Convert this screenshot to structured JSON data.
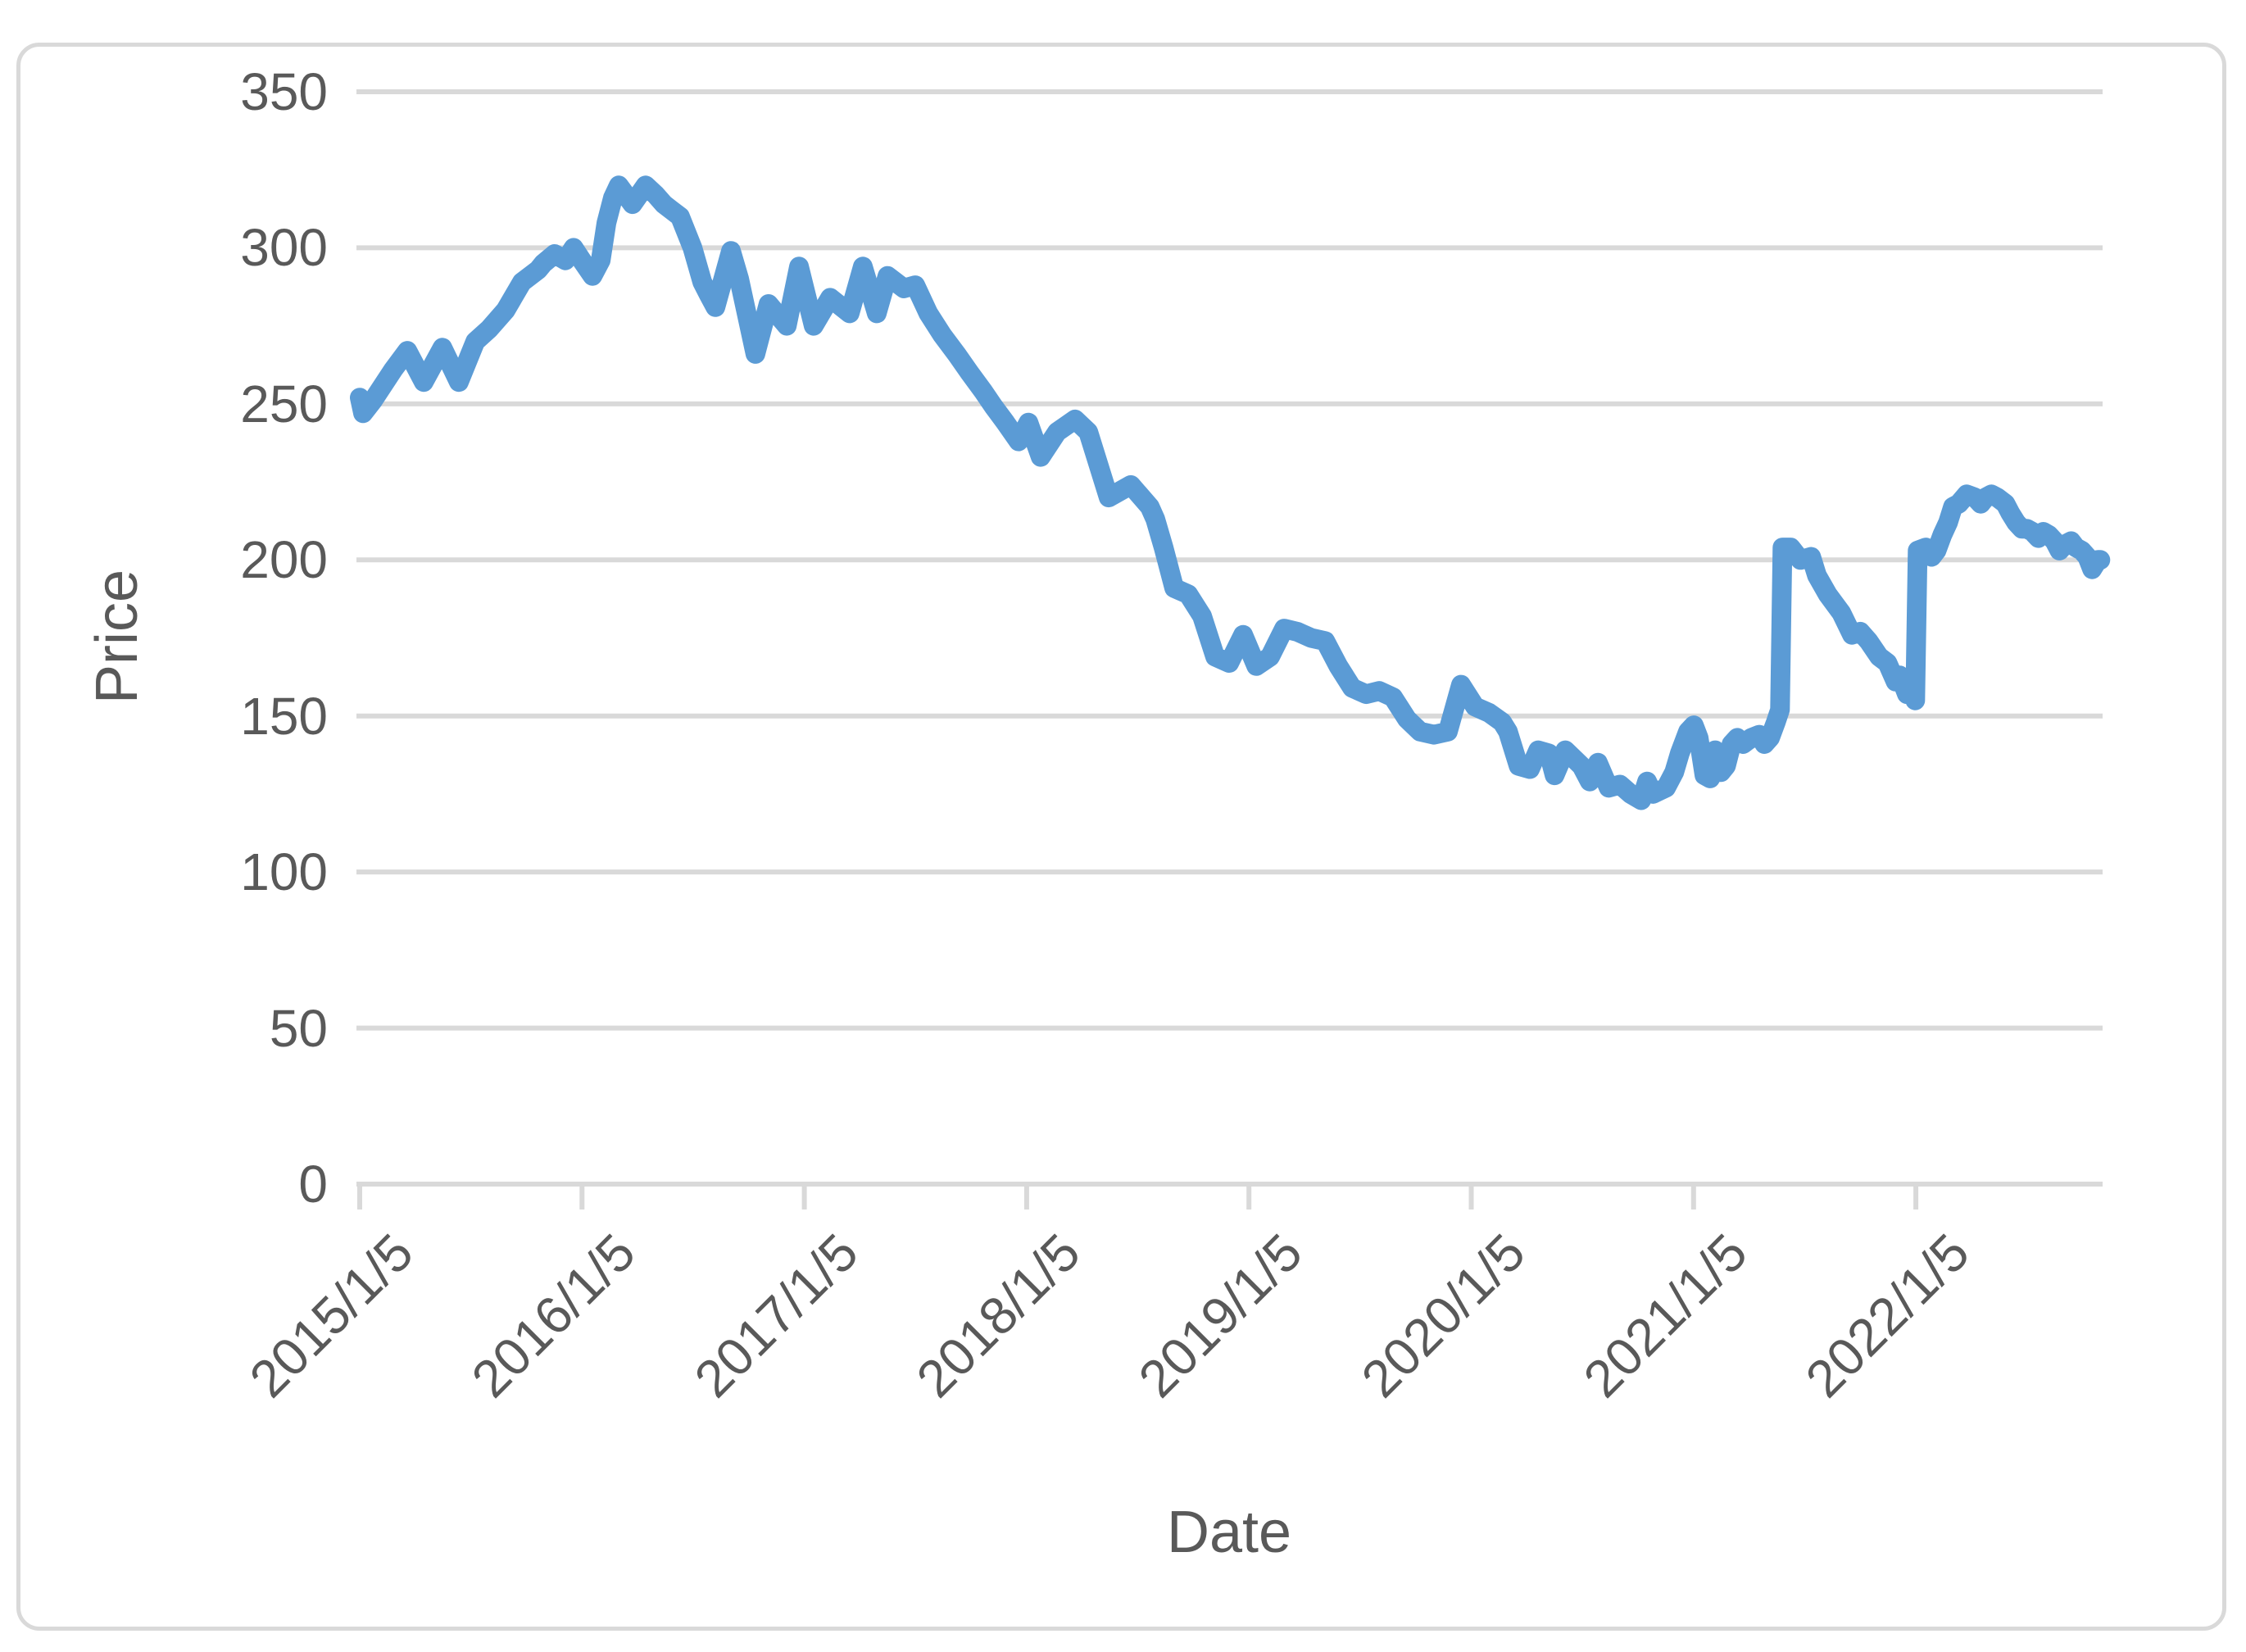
{
  "figure": {
    "kind": "excel-style line chart",
    "background": "#FFFFFF",
    "border_color": "#D9D9D9"
  },
  "chart_data": {
    "type": "line",
    "title": "",
    "xlabel": "Date",
    "ylabel": "Price",
    "legend": "none",
    "grid": "horizontal",
    "gridline_color": "#D9D9D9",
    "axis_line_color": "#D9D9D9",
    "axis_text_color": "#595959",
    "line_color": "#5B9BD5",
    "ylim": [
      0,
      350
    ],
    "y_ticks": [
      0,
      50,
      100,
      150,
      200,
      250,
      300,
      350
    ],
    "x_tick_labels": [
      "2015/1/5",
      "2016/1/5",
      "2017/1/5",
      "2018/1/5",
      "2019/1/5",
      "2020/1/5",
      "2021/1/5",
      "2022/1/5"
    ],
    "x_axis_span_years": 7.84,
    "points_format": [
      "years_since_2015_01_05",
      "approx_date",
      "price"
    ],
    "series": [
      {
        "name": "Price",
        "points": [
          [
            0.0,
            "2015-01",
            252
          ],
          [
            0.015,
            "2015-01",
            247
          ],
          [
            0.059,
            "2015-02",
            251
          ],
          [
            0.151,
            "2015-03",
            261
          ],
          [
            0.214,
            "2015-04",
            267
          ],
          [
            0.288,
            "2015-04",
            257
          ],
          [
            0.372,
            "2015-05",
            268
          ],
          [
            0.446,
            "2015-06",
            257
          ],
          [
            0.52,
            "2015-07",
            270
          ],
          [
            0.582,
            "2015-08",
            274
          ],
          [
            0.656,
            "2015-09",
            280
          ],
          [
            0.73,
            "2015-09",
            289
          ],
          [
            0.803,
            "2015-10",
            293
          ],
          [
            0.826,
            "2015-11",
            295
          ],
          [
            0.877,
            "2015-11",
            298
          ],
          [
            0.925,
            "2015-12",
            296
          ],
          [
            0.962,
            "2015-12",
            300
          ],
          [
            0.999,
            "2016-01",
            296
          ],
          [
            1.047,
            "2016-01",
            291
          ],
          [
            1.084,
            "2016-02",
            296
          ],
          [
            1.11,
            "2016-02",
            308
          ],
          [
            1.139,
            "2016-02",
            316
          ],
          [
            1.165,
            "2016-03",
            320
          ],
          [
            1.227,
            "2016-03",
            314
          ],
          [
            1.286,
            "2016-04",
            320
          ],
          [
            1.331,
            "2016-05",
            317
          ],
          [
            1.368,
            "2016-05",
            314
          ],
          [
            1.404,
            "2016-06",
            312
          ],
          [
            1.441,
            "2016-06",
            310
          ],
          [
            1.497,
            "2016-07",
            300
          ],
          [
            1.541,
            "2016-07",
            289
          ],
          [
            1.57,
            "2016-08",
            285
          ],
          [
            1.6,
            "2016-08",
            281
          ],
          [
            1.67,
            "2016-09",
            299
          ],
          [
            1.707,
            "2016-09",
            290
          ],
          [
            1.78,
            "2016-10",
            266
          ],
          [
            1.839,
            "2016-11",
            282
          ],
          [
            1.921,
            "2016-12",
            275
          ],
          [
            1.976,
            "2016-12",
            294
          ],
          [
            2.042,
            "2017-01",
            275
          ],
          [
            2.116,
            "2017-02",
            284
          ],
          [
            2.204,
            "2017-03",
            279
          ],
          [
            2.263,
            "2017-04",
            294
          ],
          [
            2.326,
            "2017-05",
            279
          ],
          [
            2.374,
            "2017-05",
            291
          ],
          [
            2.448,
            "2017-06",
            287
          ],
          [
            2.499,
            "2017-07",
            288
          ],
          [
            2.558,
            "2017-07",
            279
          ],
          [
            2.621,
            "2017-08",
            272
          ],
          [
            2.684,
            "2017-09",
            266
          ],
          [
            2.743,
            "2017-10",
            260
          ],
          [
            2.805,
            "2017-10",
            254
          ],
          [
            2.853,
            "2017-11",
            249
          ],
          [
            2.905,
            "2017-12",
            244
          ],
          [
            2.964,
            "2017-12",
            238
          ],
          [
            3.008,
            "2018-01",
            244
          ],
          [
            3.063,
            "2018-01",
            233
          ],
          [
            3.137,
            "2018-02",
            241
          ],
          [
            3.218,
            "2018-03",
            245
          ],
          [
            3.277,
            "2018-04",
            241
          ],
          [
            3.369,
            "2018-05",
            220
          ],
          [
            3.469,
            "2018-06",
            224
          ],
          [
            3.554,
            "2018-07",
            217
          ],
          [
            3.579,
            "2018-08",
            213
          ],
          [
            3.616,
            "2018-08",
            204
          ],
          [
            3.664,
            "2018-09",
            191
          ],
          [
            3.727,
            "2018-09",
            189
          ],
          [
            3.789,
            "2018-10",
            182
          ],
          [
            3.848,
            "2018-11",
            169
          ],
          [
            3.911,
            "2018-12",
            167
          ],
          [
            3.974,
            "2018-12",
            176
          ],
          [
            4.033,
            "2019-01",
            166
          ],
          [
            4.095,
            "2019-02",
            169
          ],
          [
            4.158,
            "2019-03",
            178
          ],
          [
            4.217,
            "2019-03",
            177
          ],
          [
            4.28,
            "2019-04",
            175
          ],
          [
            4.343,
            "2019-05",
            174
          ],
          [
            4.402,
            "2019-05",
            166
          ],
          [
            4.464,
            "2019-06",
            159
          ],
          [
            4.527,
            "2019-07",
            157
          ],
          [
            4.586,
            "2019-08",
            158
          ],
          [
            4.648,
            "2019-08",
            156
          ],
          [
            4.711,
            "2019-09",
            149
          ],
          [
            4.77,
            "2019-10",
            145
          ],
          [
            4.833,
            "2019-11",
            144
          ],
          [
            4.895,
            "2019-11",
            145
          ],
          [
            4.954,
            "2019-12",
            160
          ],
          [
            5.017,
            "2020-01",
            153
          ],
          [
            5.08,
            "2020-01",
            151
          ],
          [
            5.139,
            "2020-02",
            148
          ],
          [
            5.165,
            "2020-03",
            145
          ],
          [
            5.213,
            "2020-03",
            134
          ],
          [
            5.264,
            "2020-04",
            133
          ],
          [
            5.301,
            "2020-04",
            139
          ],
          [
            5.349,
            "2020-05",
            138
          ],
          [
            5.375,
            "2020-05",
            131
          ],
          [
            5.423,
            "2020-06",
            139
          ],
          [
            5.496,
            "2020-07",
            134
          ],
          [
            5.533,
            "2020-07",
            129
          ],
          [
            5.57,
            "2020-08",
            135
          ],
          [
            5.618,
            "2020-08",
            127
          ],
          [
            5.669,
            "2020-09",
            128
          ],
          [
            5.717,
            "2020-09",
            125
          ],
          [
            5.765,
            "2020-10",
            123
          ],
          [
            5.791,
            "2020-10",
            129
          ],
          [
            5.817,
            "2020-11",
            125
          ],
          [
            5.876,
            "2020-11",
            127
          ],
          [
            5.913,
            "2020-12",
            132
          ],
          [
            5.938,
            "2020-12",
            138
          ],
          [
            5.975,
            "2020-12",
            145
          ],
          [
            6.001,
            "2021-01",
            147
          ],
          [
            6.023,
            "2021-01",
            143
          ],
          [
            6.049,
            "2021-01",
            131
          ],
          [
            6.075,
            "2021-01",
            130
          ],
          [
            6.097,
            "2021-02",
            139
          ],
          [
            6.123,
            "2021-02",
            132
          ],
          [
            6.146,
            "2021-02",
            134
          ],
          [
            6.171,
            "2021-03",
            141
          ],
          [
            6.197,
            "2021-03",
            143
          ],
          [
            6.223,
            "2021-03",
            141
          ],
          [
            6.26,
            "2021-04",
            143
          ],
          [
            6.296,
            "2021-04",
            144
          ],
          [
            6.319,
            "2021-04",
            141
          ],
          [
            6.344,
            "2021-05",
            143
          ],
          [
            6.37,
            "2021-05",
            148
          ],
          [
            6.389,
            "2021-05",
            152
          ],
          [
            6.4,
            "2021-05",
            204
          ],
          [
            6.437,
            "2021-06",
            204
          ],
          [
            6.481,
            "2021-06",
            200
          ],
          [
            6.529,
            "2021-07",
            201
          ],
          [
            6.555,
            "2021-07",
            195
          ],
          [
            6.603,
            "2021-08",
            189
          ],
          [
            6.665,
            "2021-09",
            183
          ],
          [
            6.713,
            "2021-09",
            176
          ],
          [
            6.75,
            "2021-10",
            177
          ],
          [
            6.787,
            "2021-10",
            174
          ],
          [
            6.835,
            "2021-11",
            169
          ],
          [
            6.872,
            "2021-11",
            167
          ],
          [
            6.909,
            "2021-12",
            161
          ],
          [
            6.927,
            "2021-12",
            163
          ],
          [
            6.96,
            "2021-12",
            157
          ],
          [
            6.979,
            "2021-12",
            160
          ],
          [
            6.997,
            "2022-01",
            155
          ],
          [
            7.008,
            "2022-01",
            203
          ],
          [
            7.045,
            "2022-01",
            204
          ],
          [
            7.071,
            "2022-01",
            201
          ],
          [
            7.093,
            "2022-02",
            203
          ],
          [
            7.119,
            "2022-02",
            208
          ],
          [
            7.145,
            "2022-02",
            212
          ],
          [
            7.167,
            "2022-03",
            217
          ],
          [
            7.193,
            "2022-03",
            218
          ],
          [
            7.229,
            "2022-03",
            221
          ],
          [
            7.266,
            "2022-04",
            220
          ],
          [
            7.292,
            "2022-04",
            218
          ],
          [
            7.314,
            "2022-04",
            220
          ],
          [
            7.34,
            "2022-05",
            221
          ],
          [
            7.366,
            "2022-05",
            220
          ],
          [
            7.403,
            "2022-05",
            218
          ],
          [
            7.425,
            "2022-06",
            215
          ],
          [
            7.451,
            "2022-06",
            212
          ],
          [
            7.477,
            "2022-06",
            210
          ],
          [
            7.499,
            "2022-07",
            210
          ],
          [
            7.525,
            "2022-07",
            209
          ],
          [
            7.551,
            "2022-07",
            207
          ],
          [
            7.573,
            "2022-08",
            209
          ],
          [
            7.598,
            "2022-08",
            208
          ],
          [
            7.624,
            "2022-08",
            206
          ],
          [
            7.646,
            "2022-08",
            203
          ],
          [
            7.672,
            "2022-09",
            205
          ],
          [
            7.698,
            "2022-09",
            206
          ],
          [
            7.72,
            "2022-09",
            204
          ],
          [
            7.746,
            "2022-10",
            203
          ],
          [
            7.771,
            "2022-10",
            201
          ],
          [
            7.793,
            "2022-10",
            197
          ],
          [
            7.819,
            "2022-11",
            200
          ],
          [
            7.83,
            "2022-11",
            200
          ]
        ]
      }
    ]
  }
}
